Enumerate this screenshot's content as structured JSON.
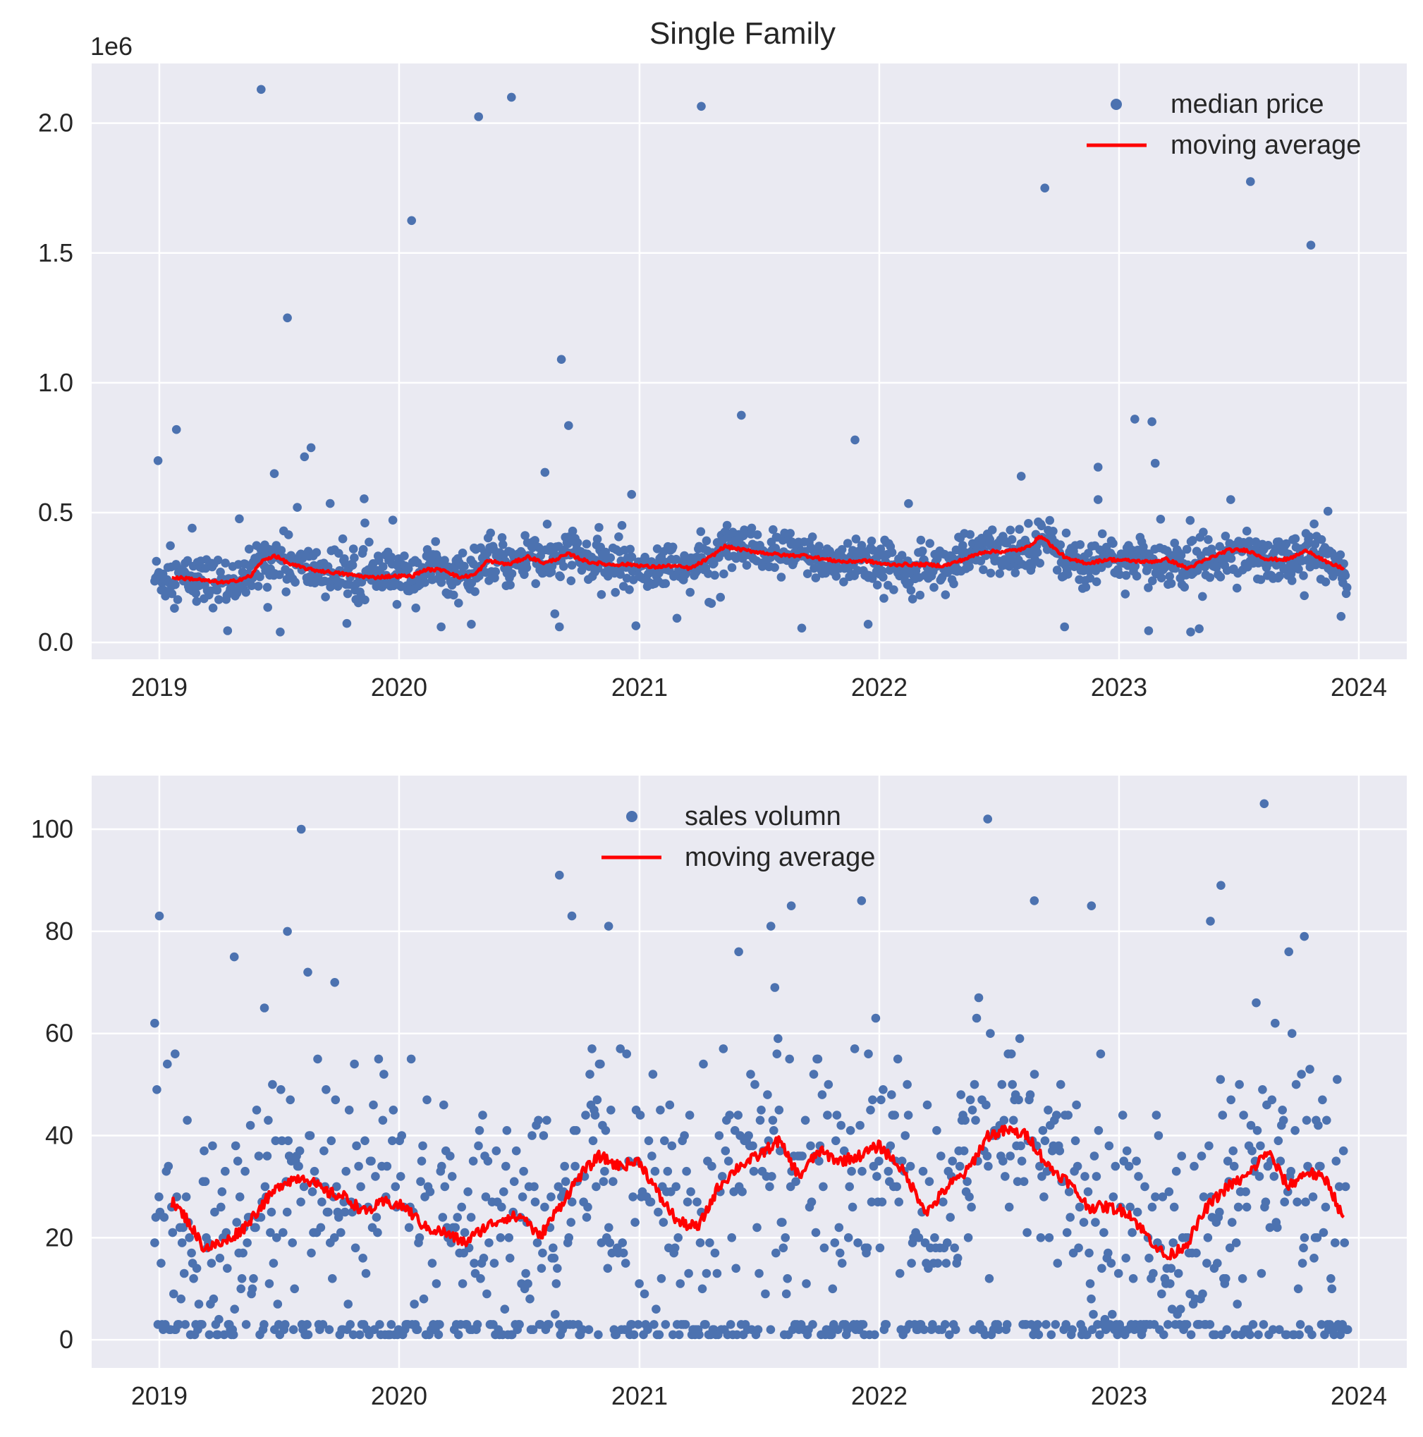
{
  "figure_title": "Single Family",
  "colors": {
    "points": "#4c72b0",
    "moving_average": "#ff0000",
    "plot_bg": "#eaeaf2",
    "grid": "#ffffff",
    "text": "#262626"
  },
  "chart_data": [
    {
      "type": "scatter",
      "title": "Single Family",
      "xlabel": "",
      "ylabel": "",
      "y_offset_label": "1e6",
      "x_ticks": [
        "2019",
        "2020",
        "2021",
        "2022",
        "2023",
        "2024"
      ],
      "y_ticks": [
        "0.0",
        "0.5",
        "1.0",
        "1.5",
        "2.0"
      ],
      "xlim": [
        "2018-09-20",
        "2024-03-14"
      ],
      "ylim": [
        -65000,
        2230000
      ],
      "grid": true,
      "legend_position": "upper right",
      "series": [
        {
          "name": "median price",
          "kind": "points",
          "note_visible_outliers": [
            [
              "2018-12-30",
              700000
            ],
            [
              "2019-01-27",
              820000
            ],
            [
              "2019-02-20",
              440000
            ],
            [
              "2019-04-15",
              45000
            ],
            [
              "2019-06-05",
              2130000
            ],
            [
              "2019-06-15",
              135000
            ],
            [
              "2019-06-25",
              650000
            ],
            [
              "2019-07-04",
              40000
            ],
            [
              "2019-07-15",
              1250000
            ],
            [
              "2019-07-30",
              520000
            ],
            [
              "2019-08-10",
              715000
            ],
            [
              "2019-08-20",
              750000
            ],
            [
              "2019-09-18",
              535000
            ],
            [
              "2019-11-10",
              460000
            ],
            [
              "2020-01-20",
              1625000
            ],
            [
              "2020-03-05",
              60000
            ],
            [
              "2020-04-20",
              70000
            ],
            [
              "2020-05-01",
              2025000
            ],
            [
              "2020-06-20",
              2100000
            ],
            [
              "2020-08-10",
              655000
            ],
            [
              "2020-08-25",
              110000
            ],
            [
              "2020-09-01",
              60000
            ],
            [
              "2020-09-04",
              1090000
            ],
            [
              "2020-09-15",
              835000
            ],
            [
              "2020-12-20",
              570000
            ],
            [
              "2021-04-05",
              2065000
            ],
            [
              "2021-06-05",
              875000
            ],
            [
              "2021-09-05",
              55000
            ],
            [
              "2021-11-25",
              780000
            ],
            [
              "2021-12-15",
              70000
            ],
            [
              "2022-09-10",
              1750000
            ],
            [
              "2022-08-05",
              640000
            ],
            [
              "2022-10-10",
              60000
            ],
            [
              "2022-11-30",
              675000
            ],
            [
              "2022-11-30",
              550000
            ],
            [
              "2023-01-25",
              860000
            ],
            [
              "2023-02-20",
              850000
            ],
            [
              "2023-02-25",
              690000
            ],
            [
              "2023-02-15",
              45000
            ],
            [
              "2023-04-20",
              40000
            ],
            [
              "2023-06-20",
              550000
            ],
            [
              "2023-07-20",
              1775000
            ],
            [
              "2023-10-20",
              1530000
            ],
            [
              "2023-11-15",
              505000
            ],
            [
              "2023-12-05",
              100000
            ]
          ]
        },
        {
          "name": "moving average",
          "kind": "line",
          "points": [
            [
              "2019-01-20",
              250000
            ],
            [
              "2019-02-20",
              245000
            ],
            [
              "2019-03-20",
              235000
            ],
            [
              "2019-04-15",
              230000
            ],
            [
              "2019-05-20",
              255000
            ],
            [
              "2019-06-05",
              310000
            ],
            [
              "2019-06-25",
              335000
            ],
            [
              "2019-07-20",
              300000
            ],
            [
              "2019-08-20",
              280000
            ],
            [
              "2019-09-20",
              270000
            ],
            [
              "2019-10-20",
              260000
            ],
            [
              "2019-11-20",
              250000
            ],
            [
              "2019-12-20",
              255000
            ],
            [
              "2020-01-20",
              255000
            ],
            [
              "2020-02-10",
              280000
            ],
            [
              "2020-03-10",
              280000
            ],
            [
              "2020-04-01",
              250000
            ],
            [
              "2020-04-25",
              260000
            ],
            [
              "2020-05-15",
              315000
            ],
            [
              "2020-06-15",
              300000
            ],
            [
              "2020-07-15",
              330000
            ],
            [
              "2020-08-10",
              305000
            ],
            [
              "2020-09-15",
              340000
            ],
            [
              "2020-10-15",
              310000
            ],
            [
              "2020-11-15",
              300000
            ],
            [
              "2020-12-20",
              300000
            ],
            [
              "2021-01-20",
              290000
            ],
            [
              "2021-02-20",
              295000
            ],
            [
              "2021-03-20",
              285000
            ],
            [
              "2021-04-20",
              330000
            ],
            [
              "2021-05-10",
              370000
            ],
            [
              "2021-06-10",
              355000
            ],
            [
              "2021-07-10",
              345000
            ],
            [
              "2021-08-10",
              335000
            ],
            [
              "2021-09-10",
              335000
            ],
            [
              "2021-10-10",
              320000
            ],
            [
              "2021-11-10",
              310000
            ],
            [
              "2021-12-10",
              315000
            ],
            [
              "2022-01-10",
              300000
            ],
            [
              "2022-02-10",
              300000
            ],
            [
              "2022-03-10",
              300000
            ],
            [
              "2022-04-10",
              295000
            ],
            [
              "2022-05-10",
              320000
            ],
            [
              "2022-06-10",
              350000
            ],
            [
              "2022-07-10",
              350000
            ],
            [
              "2022-08-10",
              360000
            ],
            [
              "2022-09-05",
              410000
            ],
            [
              "2022-09-25",
              360000
            ],
            [
              "2022-10-15",
              320000
            ],
            [
              "2022-11-15",
              305000
            ],
            [
              "2022-12-15",
              320000
            ],
            [
              "2023-01-15",
              315000
            ],
            [
              "2023-02-15",
              310000
            ],
            [
              "2023-03-15",
              320000
            ],
            [
              "2023-04-15",
              285000
            ],
            [
              "2023-05-15",
              320000
            ],
            [
              "2023-06-15",
              355000
            ],
            [
              "2023-07-15",
              355000
            ],
            [
              "2023-08-15",
              320000
            ],
            [
              "2023-09-15",
              320000
            ],
            [
              "2023-10-15",
              355000
            ],
            [
              "2023-11-15",
              305000
            ],
            [
              "2023-12-10",
              285000
            ]
          ]
        }
      ]
    },
    {
      "type": "scatter",
      "title": "",
      "xlabel": "",
      "ylabel": "",
      "x_ticks": [
        "2019",
        "2020",
        "2021",
        "2022",
        "2023",
        "2024"
      ],
      "y_ticks": [
        "0",
        "20",
        "40",
        "60",
        "80",
        "100"
      ],
      "xlim": [
        "2018-09-20",
        "2024-03-14"
      ],
      "ylim": [
        -5.5,
        110.5
      ],
      "grid": true,
      "legend_position": "upper center",
      "series": [
        {
          "name": "sales volumn",
          "kind": "points",
          "note_visible_outliers": [
            [
              "2018-12-25",
              62
            ],
            [
              "2019-01-01",
              83
            ],
            [
              "2019-01-25",
              56
            ],
            [
              "2019-04-25",
              75
            ],
            [
              "2019-06-10",
              65
            ],
            [
              "2019-08-05",
              100
            ],
            [
              "2019-07-15",
              80
            ],
            [
              "2019-08-15",
              72
            ],
            [
              "2019-09-25",
              70
            ],
            [
              "2020-09-01",
              91
            ],
            [
              "2020-09-20",
              83
            ],
            [
              "2020-11-15",
              81
            ],
            [
              "2021-06-01",
              76
            ],
            [
              "2021-07-20",
              81
            ],
            [
              "2021-08-20",
              85
            ],
            [
              "2021-12-05",
              86
            ],
            [
              "2022-06-15",
              102
            ],
            [
              "2022-08-25",
              86
            ],
            [
              "2022-11-20",
              85
            ],
            [
              "2023-06-05",
              89
            ],
            [
              "2023-05-20",
              82
            ],
            [
              "2023-08-10",
              105
            ],
            [
              "2023-10-10",
              79
            ]
          ]
        },
        {
          "name": "moving average",
          "kind": "line",
          "points": [
            [
              "2019-01-20",
              27
            ],
            [
              "2019-02-10",
              24
            ],
            [
              "2019-03-10",
              18
            ],
            [
              "2019-04-10",
              19
            ],
            [
              "2019-05-10",
              22
            ],
            [
              "2019-06-10",
              27
            ],
            [
              "2019-07-10",
              31
            ],
            [
              "2019-08-10",
              32
            ],
            [
              "2019-09-10",
              29
            ],
            [
              "2019-10-10",
              28
            ],
            [
              "2019-11-10",
              25
            ],
            [
              "2019-12-10",
              27
            ],
            [
              "2020-01-10",
              26
            ],
            [
              "2020-02-10",
              22
            ],
            [
              "2020-03-10",
              21
            ],
            [
              "2020-04-10",
              19
            ],
            [
              "2020-05-10",
              22
            ],
            [
              "2020-06-10",
              24
            ],
            [
              "2020-07-10",
              24
            ],
            [
              "2020-08-01",
              20
            ],
            [
              "2020-09-01",
              26
            ],
            [
              "2020-10-01",
              32
            ],
            [
              "2020-11-01",
              36
            ],
            [
              "2020-12-01",
              34
            ],
            [
              "2021-01-01",
              35
            ],
            [
              "2021-02-01",
              28
            ],
            [
              "2021-03-01",
              23
            ],
            [
              "2021-04-01",
              22
            ],
            [
              "2021-05-01",
              30
            ],
            [
              "2021-06-01",
              34
            ],
            [
              "2021-07-01",
              36
            ],
            [
              "2021-08-01",
              39
            ],
            [
              "2021-09-01",
              32
            ],
            [
              "2021-10-01",
              37
            ],
            [
              "2021-11-01",
              35
            ],
            [
              "2021-12-01",
              36
            ],
            [
              "2022-01-01",
              38
            ],
            [
              "2022-02-01",
              34
            ],
            [
              "2022-03-15",
              25
            ],
            [
              "2022-04-15",
              30
            ],
            [
              "2022-05-15",
              33
            ],
            [
              "2022-06-15",
              40
            ],
            [
              "2022-07-15",
              41
            ],
            [
              "2022-08-15",
              40
            ],
            [
              "2022-09-15",
              34
            ],
            [
              "2022-10-15",
              31
            ],
            [
              "2022-11-15",
              26
            ],
            [
              "2022-12-15",
              26
            ],
            [
              "2023-01-15",
              25
            ],
            [
              "2023-02-15",
              20
            ],
            [
              "2023-03-15",
              16
            ],
            [
              "2023-04-15",
              19
            ],
            [
              "2023-05-15",
              26
            ],
            [
              "2023-06-15",
              30
            ],
            [
              "2023-07-15",
              32
            ],
            [
              "2023-08-15",
              37
            ],
            [
              "2023-09-15",
              30
            ],
            [
              "2023-10-15",
              33
            ],
            [
              "2023-11-15",
              31
            ],
            [
              "2023-12-10",
              23
            ]
          ]
        }
      ]
    }
  ]
}
